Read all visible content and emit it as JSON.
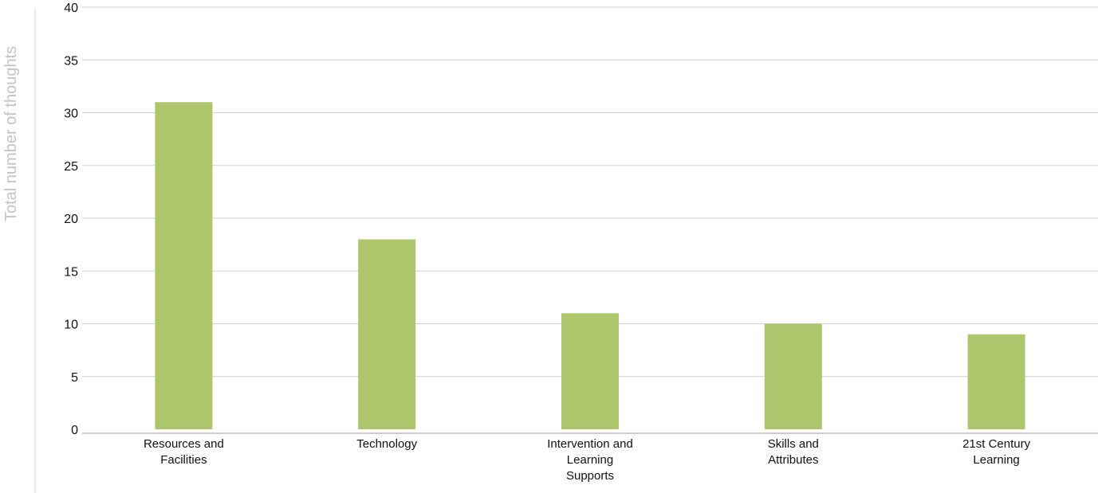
{
  "chart_data": {
    "type": "bar",
    "title": "",
    "xlabel": "",
    "ylabel": "Total number of thoughts",
    "categories": [
      [
        "Resources and",
        "Facilities"
      ],
      [
        "Technology"
      ],
      [
        "Intervention and",
        "Learning",
        "Supports"
      ],
      [
        "Skills and",
        "Attributes"
      ],
      [
        "21st Century",
        "Learning"
      ]
    ],
    "values": [
      31,
      18,
      11,
      10,
      9
    ],
    "ylim": [
      0,
      40
    ],
    "yticks": [
      0,
      5,
      10,
      15,
      20,
      25,
      30,
      35,
      40
    ],
    "grid": true,
    "legend": "none",
    "colors": {
      "bar": "#adc66c"
    }
  }
}
